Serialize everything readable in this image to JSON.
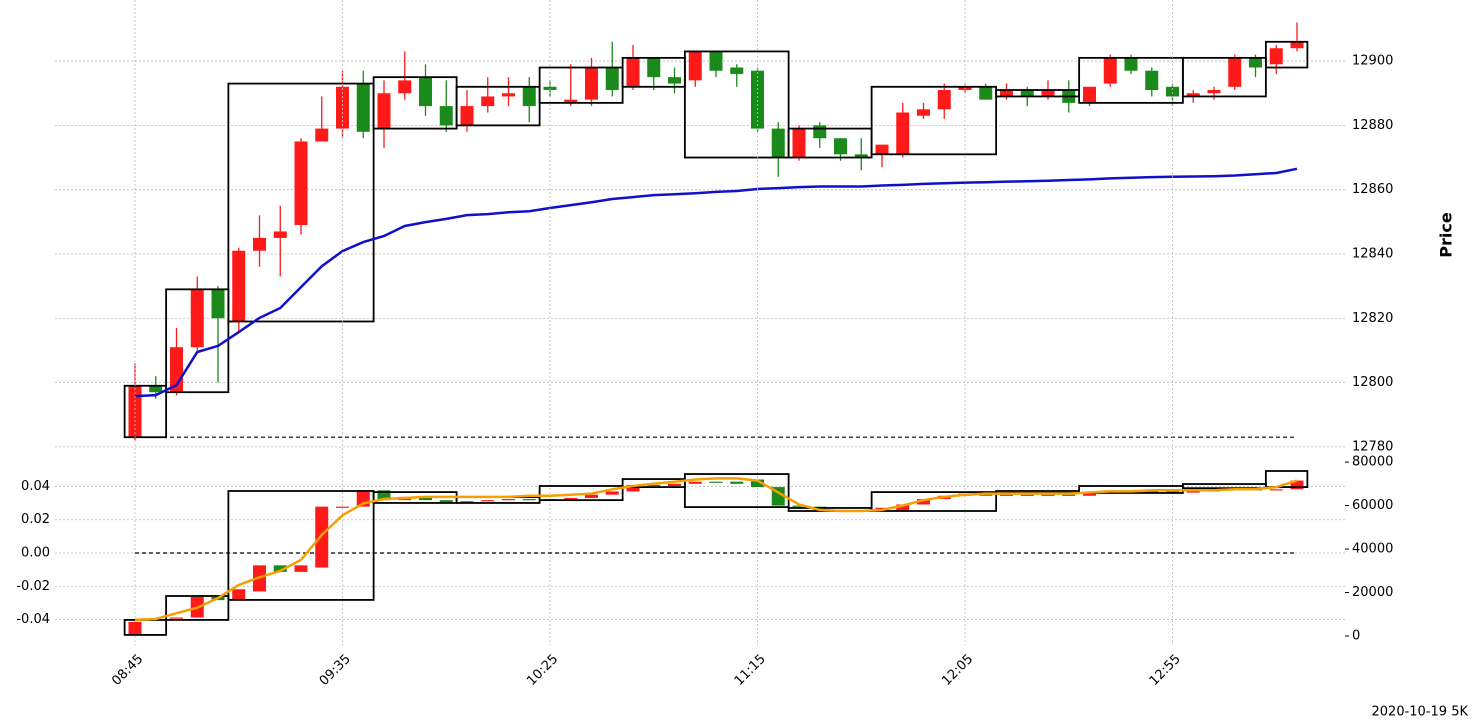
{
  "chart_data": [
    {
      "type": "candlestick",
      "ylabel": "Price",
      "yaxis_side": "right",
      "ylim": [
        12778.4,
        12919
      ],
      "yticks": [
        12780,
        12800,
        12820,
        12840,
        12860,
        12880,
        12900
      ],
      "grid": true,
      "up_color": "#ff1a1a",
      "down_color": "#1a8a1a",
      "candles": {
        "axis": "y",
        "open": [
          12783,
          12799,
          12797,
          12811,
          12829,
          12819,
          12841,
          12845,
          12849,
          12875,
          12879,
          12893,
          12879,
          12890,
          12895,
          12886,
          12880,
          12886,
          12889,
          12892,
          12892,
          12887,
          12888,
          12898,
          12892,
          12901,
          12895,
          12894,
          12903,
          12898,
          12897,
          12879,
          12870,
          12880,
          12876,
          12871,
          12871,
          12871,
          12883,
          12885,
          12891,
          12892,
          12889,
          12891,
          12889,
          12891,
          12887,
          12893,
          12901,
          12897,
          12892,
          12889,
          12890,
          12892,
          12901,
          12899,
          12904
        ],
        "high": [
          12806,
          12802,
          12817,
          12833,
          12830,
          12842,
          12852,
          12855,
          12876,
          12889,
          12897,
          12897,
          12894,
          12903,
          12899,
          12894,
          12891,
          12895,
          12895,
          12895,
          12894,
          12899,
          12901,
          12906,
          12905,
          12901,
          12898,
          12903,
          12903,
          12899,
          12898,
          12881,
          12880,
          12881,
          12876,
          12876,
          12874,
          12887,
          12887,
          12893,
          12893,
          12893,
          12893,
          12892,
          12894,
          12894,
          12892,
          12902,
          12902,
          12898,
          12893,
          12891,
          12892,
          12902,
          12902,
          12905,
          12912
        ],
        "low": [
          12782,
          12795,
          12796,
          12810,
          12800,
          12816,
          12836,
          12833,
          12846,
          12875,
          12876,
          12876,
          12873,
          12888,
          12883,
          12878,
          12878,
          12884,
          12886,
          12881,
          12889,
          12886,
          12886,
          12889,
          12891,
          12891,
          12890,
          12892,
          12895,
          12892,
          12878,
          12864,
          12869,
          12873,
          12869,
          12866,
          12867,
          12870,
          12882,
          12882,
          12890,
          12888,
          12888,
          12886,
          12888,
          12884,
          12886,
          12892,
          12896,
          12889,
          12886,
          12887,
          12888,
          12891,
          12895,
          12896,
          12903
        ],
        "close": [
          12799,
          12797,
          12811,
          12829,
          12820,
          12841,
          12845,
          12847,
          12875,
          12879,
          12892,
          12878,
          12890,
          12894,
          12886,
          12880,
          12886,
          12889,
          12890,
          12886,
          12891,
          12888,
          12898,
          12891,
          12901,
          12895,
          12893,
          12903,
          12897,
          12896,
          12879,
          12870,
          12879,
          12876,
          12871,
          12870,
          12874,
          12884,
          12885,
          12891,
          12892,
          12888,
          12891,
          12889,
          12891,
          12887,
          12892,
          12901,
          12897,
          12891,
          12889,
          12890,
          12891,
          12901,
          12898,
          12904,
          12906
        ]
      },
      "line": {
        "axis": "y",
        "color": "#1010cc",
        "values": [
          12795.8,
          12796.1,
          12799.2,
          12809.5,
          12811.4,
          12815.7,
          12820.1,
          12823.2,
          12829.7,
          12836.2,
          12840.9,
          12843.7,
          12845.6,
          12848.7,
          12849.9,
          12850.9,
          12852.1,
          12852.4,
          12853,
          12853.3,
          12854.3,
          12855.2,
          12856.1,
          12857.1,
          12857.7,
          12858.3,
          12858.6,
          12858.9,
          12859.3,
          12859.6,
          12860.2,
          12860.5,
          12860.8,
          12861,
          12861,
          12861,
          12861.3,
          12861.5,
          12861.8,
          12862,
          12862.2,
          12862.3,
          12862.5,
          12862.6,
          12862.8,
          12863,
          12863.2,
          12863.5,
          12863.7,
          12863.9,
          12864,
          12864.1,
          12864.2,
          12864.4,
          12864.8,
          12865.2,
          12866.5
        ]
      },
      "boxes": {
        "axis": "y",
        "items": [
          {
            "start": 0,
            "end": 1,
            "high": 12799,
            "low": 12783
          },
          {
            "start": 2,
            "end": 4,
            "high": 12829,
            "low": 12797
          },
          {
            "start": 5,
            "end": 11,
            "high": 12893,
            "low": 12819
          },
          {
            "start": 12,
            "end": 15,
            "high": 12895,
            "low": 12879
          },
          {
            "start": 16,
            "end": 19,
            "high": 12892,
            "low": 12880
          },
          {
            "start": 20,
            "end": 23,
            "high": 12898,
            "low": 12887
          },
          {
            "start": 24,
            "end": 26,
            "high": 12901,
            "low": 12892
          },
          {
            "start": 27,
            "end": 31,
            "high": 12903,
            "low": 12870
          },
          {
            "start": 32,
            "end": 35,
            "high": 12879,
            "low": 12870
          },
          {
            "start": 36,
            "end": 41,
            "high": 12892,
            "low": 12871
          },
          {
            "start": 42,
            "end": 45,
            "high": 12891,
            "low": 12889
          },
          {
            "start": 46,
            "end": 50,
            "high": 12901,
            "low": 12887
          },
          {
            "start": 51,
            "end": 54,
            "high": 12901,
            "low": 12889
          },
          {
            "start": 55,
            "end": 56,
            "high": 12906,
            "low": 12898
          }
        ]
      },
      "hline": {
        "axis": "y",
        "value": 12783
      }
    },
    {
      "type": "candlestick",
      "categories": [
        "08:45",
        null,
        null,
        null,
        null,
        null,
        null,
        null,
        null,
        null,
        "09:35",
        null,
        null,
        null,
        null,
        null,
        null,
        null,
        null,
        null,
        "10:25",
        null,
        null,
        null,
        null,
        null,
        null,
        null,
        null,
        null,
        "11:15",
        null,
        null,
        null,
        null,
        null,
        null,
        null,
        null,
        null,
        "12:05",
        null,
        null,
        null,
        null,
        null,
        null,
        null,
        null,
        null,
        "12:55",
        null,
        null,
        null,
        null,
        null,
        null
      ],
      "ylim": [
        -0.0553,
        0.0589
      ],
      "yticks": [
        -0.04,
        -0.02,
        {
          "value": 0,
          "label": "0.00"
        },
        0.02,
        0.04
      ],
      "grid": true,
      "y2lim": [
        -4140,
        83260
      ],
      "y2ticks": [
        0,
        20000,
        40000,
        60000,
        80000
      ],
      "up_color": "#ff1a1a",
      "down_color": "#1a8a1a",
      "candles": {
        "axis": "y2",
        "open": [
          500,
          7500,
          8000,
          8500,
          18000,
          16500,
          20500,
          32500,
          29500,
          31500,
          59000,
          59500,
          67000,
          62500,
          64000,
          62500,
          61500,
          62000,
          62500,
          63000,
          62500,
          63000,
          63500,
          65000,
          66500,
          69500,
          69000,
          70000,
          71000,
          71000,
          72000,
          68500,
          60000,
          59500,
          58000,
          57800,
          57500,
          57500,
          60500,
          63000,
          64500,
          65500,
          64500,
          65000,
          64500,
          65000,
          64500,
          65500,
          67000,
          66500,
          66500,
          66000,
          66500,
          67000,
          67500,
          67000,
          67500
        ],
        "close": [
          6500,
          7000,
          8500,
          18000,
          16500,
          21500,
          32500,
          29500,
          32500,
          59500,
          59500,
          67000,
          62500,
          64000,
          62500,
          61500,
          62000,
          62500,
          63000,
          62500,
          63000,
          63500,
          65000,
          66500,
          69500,
          69000,
          70000,
          71000,
          70500,
          70000,
          68500,
          60000,
          59500,
          58000,
          57500,
          57500,
          59000,
          60500,
          63000,
          64500,
          65500,
          64500,
          65000,
          64500,
          65000,
          64500,
          65500,
          67000,
          66500,
          66000,
          66000,
          66500,
          67000,
          67500,
          67000,
          67500,
          71500
        ]
      },
      "line": {
        "axis": "y2",
        "color": "#f5a000",
        "values": [
          7500,
          7800,
          10500,
          13000,
          17500,
          23500,
          27000,
          30000,
          35000,
          46500,
          55500,
          61000,
          63000,
          63500,
          64000,
          64000,
          64000,
          64000,
          64000,
          64500,
          64500,
          65000,
          65500,
          67500,
          69000,
          70000,
          71000,
          72000,
          72500,
          72500,
          71500,
          66000,
          60500,
          58000,
          57500,
          57500,
          58000,
          60000,
          62500,
          64000,
          65000,
          65500,
          65500,
          65500,
          65500,
          65500,
          66000,
          66500,
          66500,
          67000,
          67000,
          67000,
          67000,
          67500,
          67500,
          68500,
          71500
        ]
      },
      "boxes": {
        "axis": "y2",
        "items": [
          {
            "start": 0,
            "end": 1,
            "high": 7400,
            "low": 500
          },
          {
            "start": 2,
            "end": 4,
            "high": 18400,
            "low": 7400
          },
          {
            "start": 5,
            "end": 11,
            "high": 66700,
            "low": 16600
          },
          {
            "start": 12,
            "end": 15,
            "high": 66200,
            "low": 61200
          },
          {
            "start": 16,
            "end": 19,
            "high": 63900,
            "low": 61200
          },
          {
            "start": 20,
            "end": 23,
            "high": 69000,
            "low": 62500
          },
          {
            "start": 24,
            "end": 26,
            "high": 72200,
            "low": 68500
          },
          {
            "start": 27,
            "end": 31,
            "high": 74500,
            "low": 59300
          },
          {
            "start": 32,
            "end": 35,
            "high": 58900,
            "low": 57500
          },
          {
            "start": 36,
            "end": 41,
            "high": 66200,
            "low": 57500
          },
          {
            "start": 42,
            "end": 45,
            "high": 66700,
            "low": 65800
          },
          {
            "start": 46,
            "end": 50,
            "high": 69000,
            "low": 65800
          },
          {
            "start": 51,
            "end": 54,
            "high": 69900,
            "low": 68000
          },
          {
            "start": 55,
            "end": 56,
            "high": 75900,
            "low": 68500
          }
        ]
      },
      "hline": {
        "axis": "y",
        "value": 0
      }
    }
  ],
  "caption": "2020-10-19 5K"
}
